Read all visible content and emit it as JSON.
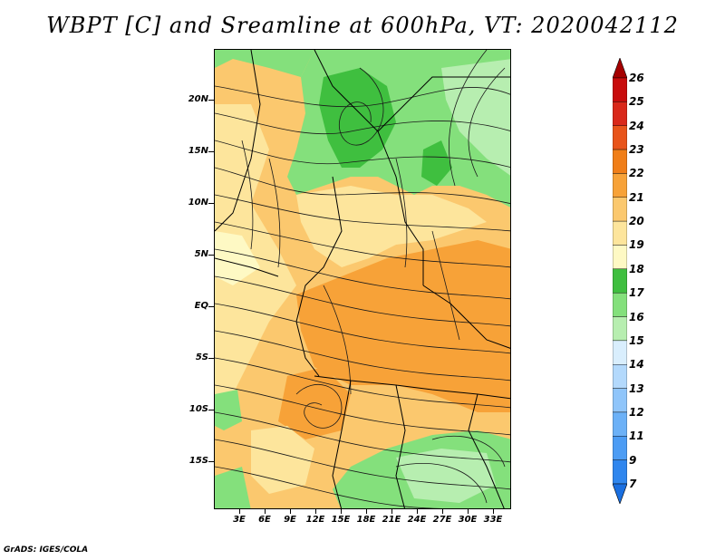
{
  "title": "WBPT [C] and Sreamline at 600hPa, VT: 2020042112",
  "credit": "GrADS: IGES/COLA",
  "map": {
    "lat_labels": [
      "20N",
      "15N",
      "10N",
      "5N",
      "EQ",
      "5S",
      "10S",
      "15S"
    ],
    "lon_labels": [
      "3E",
      "6E",
      "9E",
      "12E",
      "15E",
      "18E",
      "21E",
      "24E",
      "27E",
      "30E",
      "33E"
    ]
  },
  "colorbar": {
    "labels": [
      "7",
      "9",
      "11",
      "12",
      "13",
      "14",
      "15",
      "16",
      "17",
      "18",
      "19",
      "20",
      "21",
      "22",
      "23",
      "24",
      "25",
      "26"
    ],
    "colors": [
      "#1a6fe0",
      "#2f86ee",
      "#4c9cf4",
      "#6cb1f7",
      "#8fc5fa",
      "#b3d9fc",
      "#d9eefd",
      "#b7eeb0",
      "#84e07c",
      "#3fbf3f",
      "#fef9c4",
      "#fde59c",
      "#fbc86e",
      "#f7a238",
      "#f07e18",
      "#e8541a",
      "#d9281a",
      "#c80c0c",
      "#a50000"
    ]
  }
}
